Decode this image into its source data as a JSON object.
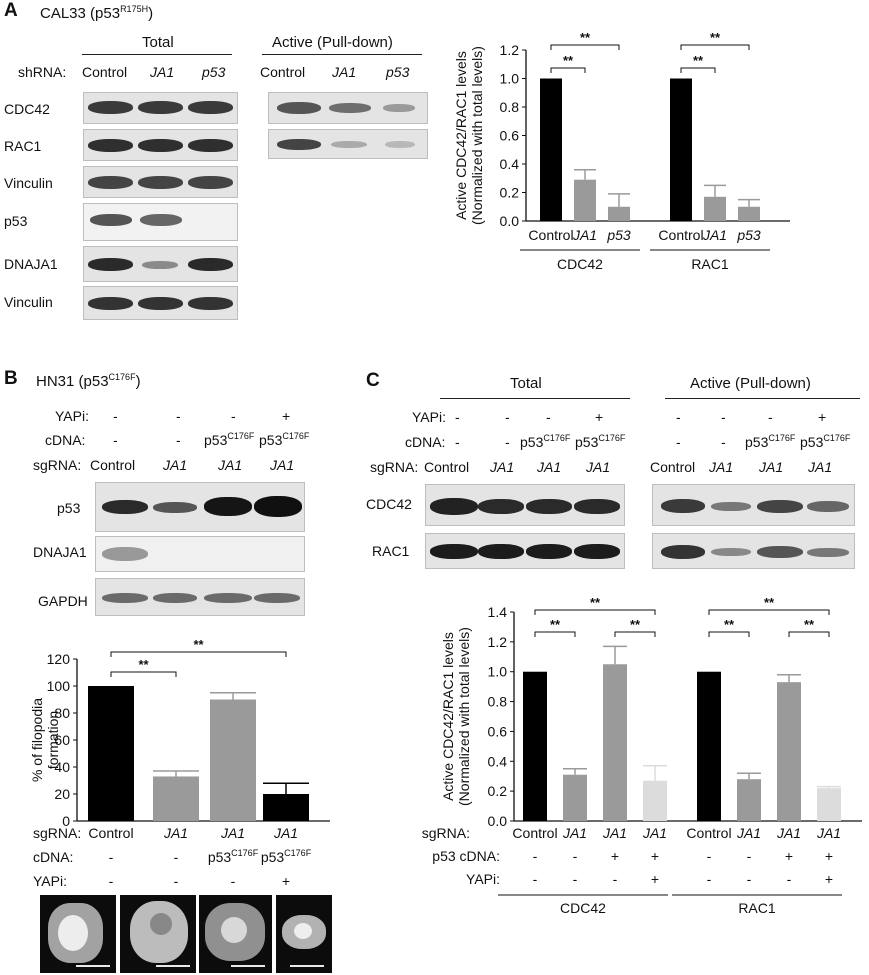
{
  "panels": {
    "A": {
      "letter": "A",
      "cell_line": "CAL33 (p53",
      "mutation_sup": "R175H",
      "paren_close": ")",
      "total_header": "Total",
      "active_header": "Active (Pull-down)",
      "shrna_label": "shRNA:",
      "lanes": [
        "Control",
        "JA1",
        "p53"
      ],
      "blot_labels": [
        "CDC42",
        "RAC1",
        "Vinculin",
        "p53",
        "DNAJA1",
        "Vinculin"
      ]
    },
    "B": {
      "letter": "B",
      "cell_line": "HN31 (p53",
      "mutation_sup": "C176F",
      "paren_close": ")",
      "yapi_label": "YAPi:",
      "cdna_label": "cDNA:",
      "sgrna_label": "sgRNA:",
      "yapi": [
        "-",
        "-",
        "-",
        "+"
      ],
      "cdna_base": [
        "-",
        "-",
        "p53",
        "p53"
      ],
      "cdna_sup": [
        "",
        "",
        "C176F",
        "C176F"
      ],
      "lanes": [
        "Control",
        "JA1",
        "JA1",
        "JA1"
      ],
      "blot_labels": [
        "p53",
        "DNAJA1",
        "GAPDH"
      ]
    },
    "C": {
      "letter": "C",
      "total_header": "Total",
      "active_header": "Active (Pull-down)",
      "yapi_label": "YAPi:",
      "cdna_label": "cDNA:",
      "sgrna_label": "sgRNA:",
      "yapi": [
        "-",
        "-",
        "-",
        "+"
      ],
      "cdna_base": [
        "-",
        "-",
        "p53",
        "p53"
      ],
      "cdna_sup": [
        "",
        "",
        "C176F",
        "C176F"
      ],
      "lanes": [
        "Control",
        "JA1",
        "JA1",
        "JA1"
      ],
      "blot_labels": [
        "CDC42",
        "RAC1"
      ]
    }
  },
  "colors": {
    "black": "#000000",
    "gray": "#9a9a9a",
    "light_gray": "#dcdcdc",
    "text": "#111111"
  },
  "chart_data": [
    {
      "id": "A",
      "type": "bar",
      "ylabel": [
        "Active CDC42/RAC1 levels",
        "(Normalized with total levels)"
      ],
      "ylim": [
        0,
        1.2
      ],
      "yticks": [
        "0.0",
        "0.2",
        "0.4",
        "0.6",
        "0.8",
        "1.0",
        "1.2"
      ],
      "groups": [
        {
          "name": "CDC42",
          "categories": [
            "Control",
            "JA1",
            "p53"
          ],
          "values": [
            1.0,
            0.29,
            0.1
          ],
          "errors": [
            0,
            0.07,
            0.09
          ]
        },
        {
          "name": "RAC1",
          "categories": [
            "Control",
            "JA1",
            "p53"
          ],
          "values": [
            1.0,
            0.17,
            0.1
          ],
          "errors": [
            0,
            0.08,
            0.05
          ]
        }
      ],
      "annotations": [
        "**",
        "**",
        "**",
        "**"
      ]
    },
    {
      "id": "B",
      "type": "bar",
      "ylabel": [
        "% of filopodia",
        "formation"
      ],
      "ylim": [
        0,
        120
      ],
      "yticks": [
        "0",
        "20",
        "40",
        "60",
        "80",
        "100",
        "120"
      ],
      "categories": [
        "Control",
        "JA1",
        "JA1",
        "JA1"
      ],
      "values": [
        100,
        33,
        90,
        20
      ],
      "errors": [
        0,
        4,
        5,
        8
      ],
      "row_labels": {
        "sgrna": "sgRNA:",
        "cdna": "cDNA:",
        "yapi": "YAPi:"
      },
      "cdna": [
        "-",
        "-",
        "p53",
        "p53"
      ],
      "cdna_sup": [
        "",
        "",
        "C176F",
        "C176F"
      ],
      "yapi": [
        "-",
        "-",
        "-",
        "+"
      ],
      "annotations": [
        "**",
        "**"
      ]
    },
    {
      "id": "C",
      "type": "bar",
      "ylabel": [
        "Active CDC42/RAC1 levels",
        "(Normalized with total levels)"
      ],
      "ylim": [
        0,
        1.4
      ],
      "yticks": [
        "0.0",
        "0.2",
        "0.4",
        "0.6",
        "0.8",
        "1.0",
        "1.2",
        "1.4"
      ],
      "groups": [
        {
          "name": "CDC42",
          "categories": [
            "Control",
            "JA1",
            "JA1",
            "JA1"
          ],
          "values": [
            1.0,
            0.31,
            1.05,
            0.27
          ],
          "errors": [
            0,
            0.04,
            0.12,
            0.1
          ]
        },
        {
          "name": "RAC1",
          "categories": [
            "Control",
            "JA1",
            "JA1",
            "JA1"
          ],
          "values": [
            1.0,
            0.28,
            0.93,
            0.22
          ],
          "errors": [
            0,
            0.04,
            0.05,
            0.01
          ]
        }
      ],
      "row_labels": {
        "sgrna": "sgRNA:",
        "cdna": "p53 cDNA:",
        "yapi": "YAPi:"
      },
      "cdna": [
        "-",
        "-",
        "+",
        "+"
      ],
      "yapi": [
        "-",
        "-",
        "-",
        "+"
      ],
      "annotations": [
        "**",
        "**",
        "**",
        "**",
        "**",
        "**"
      ]
    }
  ]
}
